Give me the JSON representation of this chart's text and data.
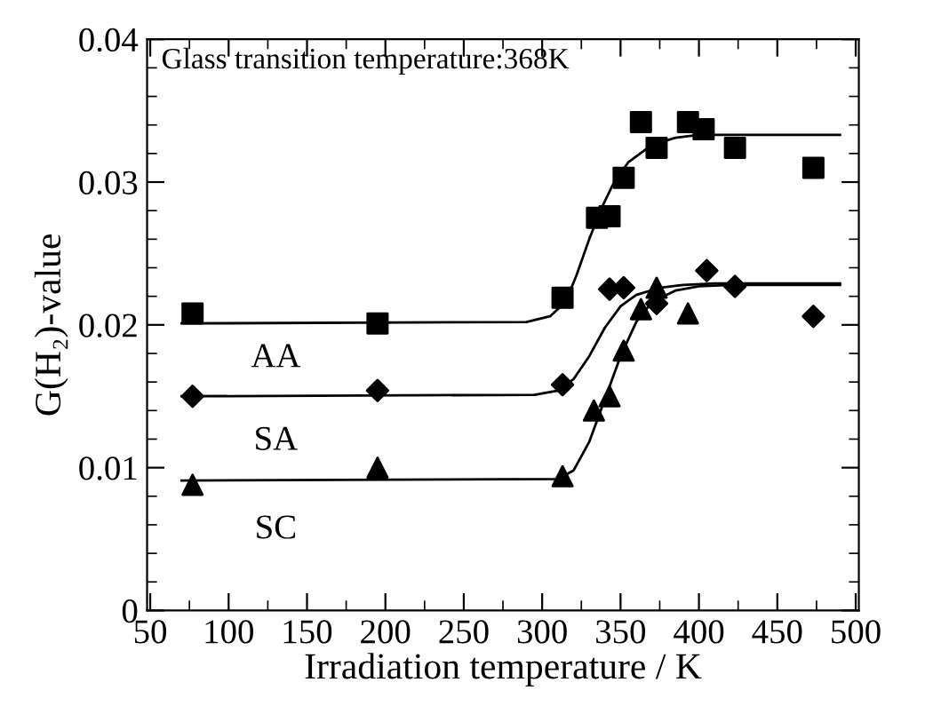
{
  "chart_data": {
    "type": "scatter",
    "xlabel": "Irradiation temperature / K",
    "ylabel": "G(H₂)-value",
    "annotations": [
      "Glass transition temperature:368K"
    ],
    "xlim": [
      48,
      502
    ],
    "ylim": [
      0,
      0.04
    ],
    "xticks": [
      50,
      100,
      150,
      200,
      250,
      300,
      350,
      400,
      450,
      500
    ],
    "yticks": [
      0,
      0.01,
      0.02,
      0.03,
      0.04
    ],
    "grid": false,
    "legend": false,
    "series": [
      {
        "name": "AA",
        "color": "#000000",
        "marker": "square",
        "x": [
          77,
          195,
          313,
          335,
          343,
          352,
          363,
          373,
          393,
          403,
          423,
          473
        ],
        "values": [
          0.0208,
          0.0201,
          0.0219,
          0.0275,
          0.0276,
          0.0303,
          0.0342,
          0.0324,
          0.0342,
          0.0337,
          0.0324,
          0.031
        ]
      },
      {
        "name": "SA",
        "color": "#000000",
        "marker": "diamond",
        "x": [
          77,
          195,
          313,
          343,
          352,
          373,
          405,
          423,
          473
        ],
        "values": [
          0.015,
          0.0154,
          0.0158,
          0.0225,
          0.0226,
          0.0215,
          0.0238,
          0.0227,
          0.0206
        ]
      },
      {
        "name": "SC",
        "color": "#000000",
        "marker": "triangle",
        "x": [
          77,
          195,
          313,
          333,
          343,
          352,
          363,
          373,
          393
        ],
        "values": [
          0.0088,
          0.01,
          0.0094,
          0.014,
          0.015,
          0.0182,
          0.0211,
          0.0226,
          0.0208
        ]
      },
      {
        "type": "line",
        "color": "#000000",
        "line_style": "solid",
        "x": [
          70,
          290,
          305,
          315,
          322,
          330,
          338,
          345,
          355,
          370,
          385,
          400,
          430,
          490
        ],
        "values": [
          0.0201,
          0.0202,
          0.0206,
          0.0216,
          0.0235,
          0.026,
          0.0282,
          0.0298,
          0.0314,
          0.0326,
          0.0331,
          0.0333,
          0.0333,
          0.0333
        ]
      },
      {
        "type": "line",
        "color": "#000000",
        "line_style": "solid",
        "x": [
          70,
          295,
          310,
          320,
          330,
          340,
          350,
          360,
          375,
          390,
          410,
          490
        ],
        "values": [
          0.015,
          0.0151,
          0.0154,
          0.0162,
          0.0178,
          0.0198,
          0.0213,
          0.0221,
          0.0226,
          0.0228,
          0.0229,
          0.0229
        ]
      },
      {
        "type": "line",
        "color": "#000000",
        "line_style": "solid",
        "x": [
          70,
          310,
          320,
          330,
          340,
          350,
          360,
          370,
          385,
          400,
          420,
          490
        ],
        "values": [
          0.0091,
          0.0092,
          0.0098,
          0.0118,
          0.0148,
          0.0178,
          0.0202,
          0.0216,
          0.0224,
          0.0227,
          0.0228,
          0.0228
        ]
      }
    ]
  }
}
